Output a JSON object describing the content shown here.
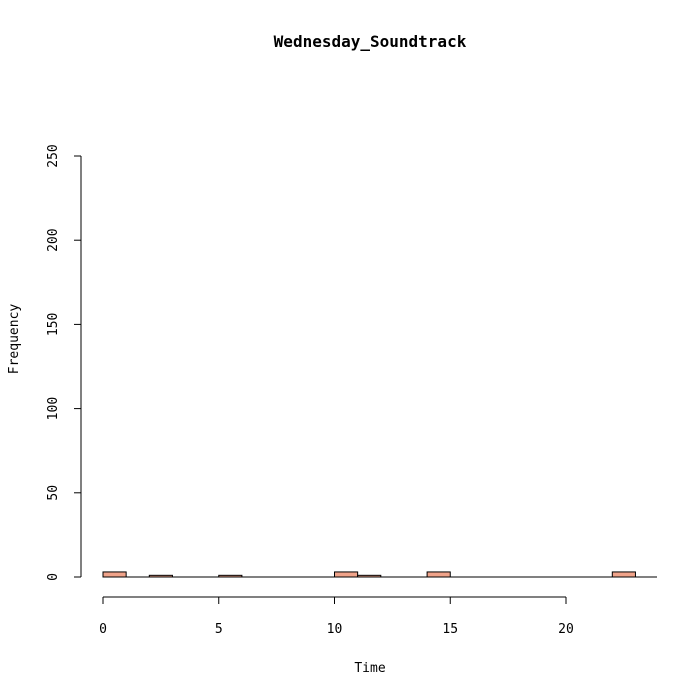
{
  "chart_data": {
    "type": "bar",
    "title": "Wednesday_Soundtrack",
    "xlabel": "Time",
    "ylabel": "Frequency",
    "bin_width": 1,
    "bins": [
      {
        "start": 0,
        "end": 1,
        "count": 3
      },
      {
        "start": 2,
        "end": 3,
        "count": 1
      },
      {
        "start": 5,
        "end": 6,
        "count": 1
      },
      {
        "start": 10,
        "end": 11,
        "count": 3
      },
      {
        "start": 11,
        "end": 12,
        "count": 1
      },
      {
        "start": 14,
        "end": 15,
        "count": 3
      },
      {
        "start": 22,
        "end": 23,
        "count": 3
      }
    ],
    "xlim": [
      0,
      24
    ],
    "ylim": [
      0,
      250
    ],
    "xticks": [
      0,
      5,
      10,
      15,
      20
    ],
    "yticks": [
      0,
      50,
      100,
      150,
      200,
      250
    ],
    "grid": false,
    "bar_color": "#F0A38A"
  }
}
